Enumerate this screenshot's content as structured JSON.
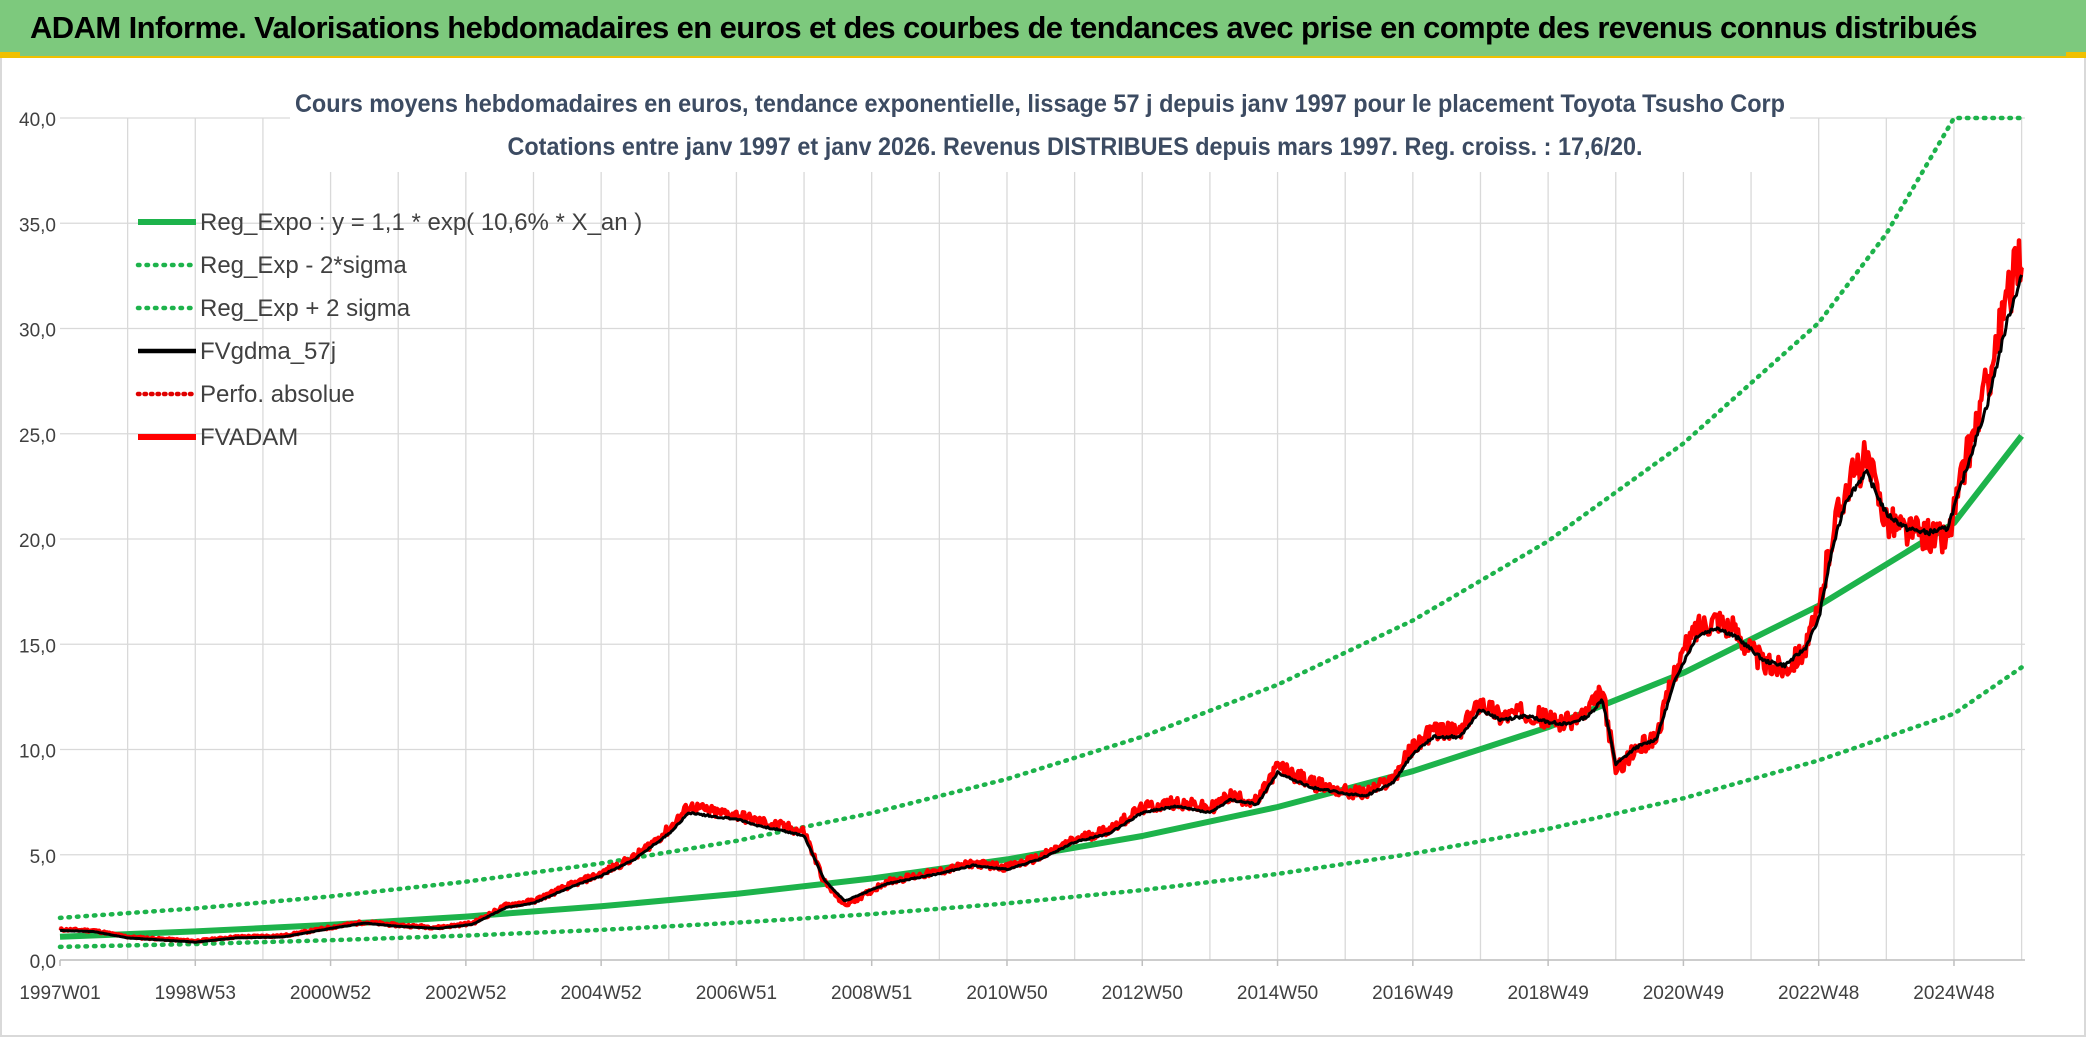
{
  "header": {
    "title": "ADAM Informe. Valorisations hebdomadaires en euros et des courbes de tendances avec prise en compte des revenus connus distribués"
  },
  "colors": {
    "banner": "#7dc97d",
    "accent": "#f0c000",
    "reg": "#1db34b",
    "sigma": "#1db34b",
    "fvgdma": "#000000",
    "perfo": "#e00000",
    "fvadam": "#ff0000",
    "grid": "#d9d9d9",
    "text": "#404040",
    "title": "#3c4b62"
  },
  "chart_data": {
    "type": "line",
    "title": "Cours moyens hebdomadaires en euros, tendance exponentielle, lissage 57 j depuis janv 1997 pour le placement Toyota Tsusho Corp",
    "subtitle": "Cotations entre janv 1997 et janv 2026. Revenus DISTRIBUES depuis mars 1997. Reg. croiss. : 17,6/20.",
    "xlabel": "",
    "ylabel": "",
    "x_range": [
      1997.0,
      2026.05
    ],
    "ylim": [
      0,
      40
    ],
    "y_ticks": [
      0,
      5,
      10,
      15,
      20,
      25,
      30,
      35,
      40
    ],
    "y_tick_labels": [
      "0,0",
      "5,0",
      "10,0",
      "15,0",
      "20,0",
      "25,0",
      "30,0",
      "35,0",
      "40,0"
    ],
    "x_ticks": [
      1997.0,
      1999.0,
      2001.0,
      2003.0,
      2005.0,
      2007.0,
      2009.0,
      2011.0,
      2013.0,
      2015.0,
      2017.0,
      2019.0,
      2021.0,
      2023.0,
      2025.0
    ],
    "x_tick_labels": [
      "1997W01",
      "1998W53",
      "2000W52",
      "2002W52",
      "2004W52",
      "2006W51",
      "2008W51",
      "2010W50",
      "2012W50",
      "2014W50",
      "2016W49",
      "2018W49",
      "2020W49",
      "2022W48",
      "2024W48"
    ],
    "grid": true,
    "legend_position": "top-left",
    "legend": [
      "Reg_Expo : y = 1,1 * exp( 10,6% *  X_an )",
      "Reg_Exp - 2*sigma",
      "Reg_Exp + 2 sigma",
      "FVgdma_57j",
      "Perfo. absolue",
      "FVADAM"
    ],
    "series": [
      {
        "name": "Reg_Expo : y = 1,1 * exp( 10,6% *  X_an )",
        "style": "solid-thick",
        "x": [
          1997,
          1999,
          2001,
          2003,
          2005,
          2007,
          2009,
          2011,
          2013,
          2015,
          2017,
          2019,
          2021,
          2023,
          2025,
          2026
        ],
        "values": [
          1.1,
          1.36,
          1.67,
          2.06,
          2.55,
          3.14,
          3.87,
          4.78,
          5.89,
          7.27,
          8.97,
          11.06,
          13.64,
          16.83,
          20.76,
          24.9
        ]
      },
      {
        "name": "Reg_Exp - 2*sigma",
        "style": "dotted",
        "x": [
          1997,
          1999,
          2001,
          2003,
          2005,
          2007,
          2009,
          2011,
          2013,
          2015,
          2017,
          2019,
          2021,
          2023,
          2025,
          2026
        ],
        "values": [
          0.62,
          0.76,
          0.94,
          1.16,
          1.43,
          1.77,
          2.18,
          2.69,
          3.32,
          4.09,
          5.05,
          6.23,
          7.68,
          9.48,
          11.7,
          13.9
        ]
      },
      {
        "name": "Reg_Exp + 2 sigma",
        "style": "dotted",
        "x": [
          1997,
          1999,
          2001,
          2003,
          2005,
          2007,
          2009,
          2011,
          2013,
          2015,
          2017,
          2019,
          2021,
          2023,
          2024,
          2025.0,
          2026
        ],
        "values": [
          2.0,
          2.45,
          3.02,
          3.72,
          4.59,
          5.66,
          6.98,
          8.6,
          10.61,
          13.08,
          16.13,
          19.9,
          24.54,
          30.27,
          34.5,
          40.0,
          40.0
        ]
      },
      {
        "name": "FVgdma_57j",
        "style": "solid",
        "x": [
          1997.0,
          1997.5,
          1998.0,
          1998.5,
          1999.0,
          1999.6,
          2000.3,
          2001.0,
          2001.5,
          2002.0,
          2002.6,
          2003.1,
          2003.6,
          2004.0,
          2004.5,
          2005.0,
          2005.5,
          2006.0,
          2006.3,
          2006.7,
          2007.0,
          2007.3,
          2007.6,
          2008.0,
          2008.3,
          2008.6,
          2008.9,
          2009.2,
          2009.5,
          2010.0,
          2010.5,
          2011.0,
          2011.5,
          2012.0,
          2012.5,
          2013.0,
          2013.5,
          2014.0,
          2014.3,
          2014.7,
          2015.0,
          2015.5,
          2016.0,
          2016.3,
          2016.7,
          2017.0,
          2017.3,
          2017.7,
          2018.0,
          2018.3,
          2018.7,
          2019.0,
          2019.3,
          2019.6,
          2019.8,
          2020.0,
          2020.3,
          2020.6,
          2020.9,
          2021.2,
          2021.5,
          2021.8,
          2022.2,
          2022.5,
          2022.8,
          2023.0,
          2023.2,
          2023.4,
          2023.7,
          2024.0,
          2024.3,
          2024.6,
          2024.9,
          2025.2,
          2025.5,
          2025.8,
          2026.0
        ],
        "values": [
          1.4,
          1.35,
          1.05,
          0.95,
          0.85,
          1.05,
          1.1,
          1.5,
          1.75,
          1.6,
          1.5,
          1.7,
          2.5,
          2.7,
          3.4,
          4.0,
          4.8,
          6.0,
          7.0,
          6.8,
          6.7,
          6.4,
          6.2,
          5.9,
          3.8,
          2.8,
          3.2,
          3.6,
          3.8,
          4.1,
          4.5,
          4.3,
          4.8,
          5.6,
          6.0,
          7.0,
          7.3,
          7.0,
          7.6,
          7.4,
          8.9,
          8.2,
          7.9,
          7.8,
          8.4,
          9.8,
          10.6,
          10.6,
          11.9,
          11.4,
          11.6,
          11.3,
          11.2,
          11.6,
          12.4,
          9.3,
          10.1,
          10.5,
          13.5,
          15.4,
          15.8,
          15.3,
          14.2,
          14.0,
          14.8,
          16.2,
          19.5,
          21.8,
          23.2,
          21.2,
          20.5,
          20.3,
          20.5,
          23.5,
          26.5,
          30.5,
          32.5
        ]
      },
      {
        "name": "Perfo. absolue",
        "style": "dotted",
        "x": [
          1997.0,
          1997.5,
          1998.0,
          1998.5,
          1999.0,
          1999.6,
          2000.3,
          2001.0,
          2001.5,
          2002.0,
          2002.6,
          2003.1,
          2003.6,
          2004.0,
          2004.5,
          2005.0,
          2005.5,
          2006.0,
          2006.3,
          2006.7,
          2007.0,
          2007.3,
          2007.6,
          2008.0,
          2008.3,
          2008.6,
          2008.9,
          2009.2,
          2009.5,
          2010.0,
          2010.5,
          2011.0,
          2011.5,
          2012.0,
          2012.5,
          2013.0,
          2013.5,
          2014.0,
          2014.3,
          2014.7,
          2015.0,
          2015.5,
          2016.0,
          2016.3,
          2016.7,
          2017.0,
          2017.3,
          2017.7,
          2018.0,
          2018.3,
          2018.7,
          2019.0,
          2019.3,
          2019.6,
          2019.8,
          2020.0,
          2020.3,
          2020.6,
          2020.9,
          2021.2,
          2021.5,
          2021.8,
          2022.2,
          2022.5,
          2022.8,
          2023.0,
          2023.2,
          2023.4,
          2023.7,
          2024.0,
          2024.3,
          2024.6,
          2024.9,
          2025.2,
          2025.5,
          2025.8,
          2026.0
        ],
        "values": [
          1.45,
          1.4,
          1.1,
          1.0,
          0.9,
          1.1,
          1.15,
          1.55,
          1.8,
          1.65,
          1.55,
          1.75,
          2.6,
          2.8,
          3.5,
          4.1,
          4.9,
          6.2,
          7.3,
          7.0,
          6.9,
          6.6,
          6.4,
          6.1,
          3.7,
          2.6,
          3.1,
          3.7,
          3.9,
          4.2,
          4.6,
          4.4,
          4.9,
          5.7,
          6.2,
          7.2,
          7.5,
          7.2,
          7.8,
          7.5,
          9.2,
          8.4,
          8.0,
          7.9,
          8.6,
          10.1,
          10.9,
          10.8,
          12.3,
          11.6,
          11.8,
          11.4,
          11.3,
          11.8,
          12.8,
          9.0,
          10.0,
          10.6,
          14.0,
          15.8,
          16.3,
          15.5,
          14.0,
          13.9,
          14.8,
          16.5,
          20.3,
          22.5,
          23.8,
          21.0,
          20.4,
          20.2,
          20.0,
          24.0,
          27.5,
          31.5,
          33.8
        ]
      },
      {
        "name": "FVADAM",
        "style": "solid-thick",
        "x": [
          1997.0,
          1997.5,
          1998.0,
          1998.5,
          1999.0,
          1999.6,
          2000.3,
          2001.0,
          2001.5,
          2002.0,
          2002.6,
          2003.1,
          2003.6,
          2004.0,
          2004.5,
          2005.0,
          2005.5,
          2006.0,
          2006.3,
          2006.7,
          2007.0,
          2007.3,
          2007.6,
          2008.0,
          2008.3,
          2008.6,
          2008.9,
          2009.2,
          2009.5,
          2010.0,
          2010.5,
          2011.0,
          2011.5,
          2012.0,
          2012.5,
          2013.0,
          2013.5,
          2014.0,
          2014.3,
          2014.7,
          2015.0,
          2015.5,
          2016.0,
          2016.3,
          2016.7,
          2017.0,
          2017.3,
          2017.7,
          2018.0,
          2018.3,
          2018.7,
          2019.0,
          2019.3,
          2019.6,
          2019.8,
          2020.0,
          2020.3,
          2020.6,
          2020.9,
          2021.2,
          2021.5,
          2021.8,
          2022.2,
          2022.5,
          2022.8,
          2023.0,
          2023.2,
          2023.4,
          2023.7,
          2024.0,
          2024.3,
          2024.6,
          2024.9,
          2025.2,
          2025.5,
          2025.8,
          2026.0
        ],
        "values": [
          1.45,
          1.4,
          1.1,
          1.0,
          0.9,
          1.1,
          1.15,
          1.55,
          1.8,
          1.65,
          1.55,
          1.75,
          2.6,
          2.8,
          3.5,
          4.1,
          4.9,
          6.2,
          7.3,
          7.0,
          6.9,
          6.6,
          6.4,
          6.1,
          3.7,
          2.6,
          3.1,
          3.7,
          3.9,
          4.2,
          4.6,
          4.4,
          4.9,
          5.7,
          6.2,
          7.2,
          7.5,
          7.2,
          7.8,
          7.5,
          9.2,
          8.4,
          8.0,
          7.9,
          8.6,
          10.1,
          10.9,
          10.8,
          12.3,
          11.6,
          11.8,
          11.4,
          11.3,
          11.8,
          12.8,
          9.0,
          10.0,
          10.6,
          14.0,
          15.8,
          16.3,
          15.5,
          14.0,
          13.9,
          14.8,
          16.5,
          20.3,
          22.5,
          23.8,
          21.0,
          20.4,
          20.2,
          20.0,
          24.0,
          27.5,
          31.5,
          33.8
        ]
      }
    ]
  }
}
